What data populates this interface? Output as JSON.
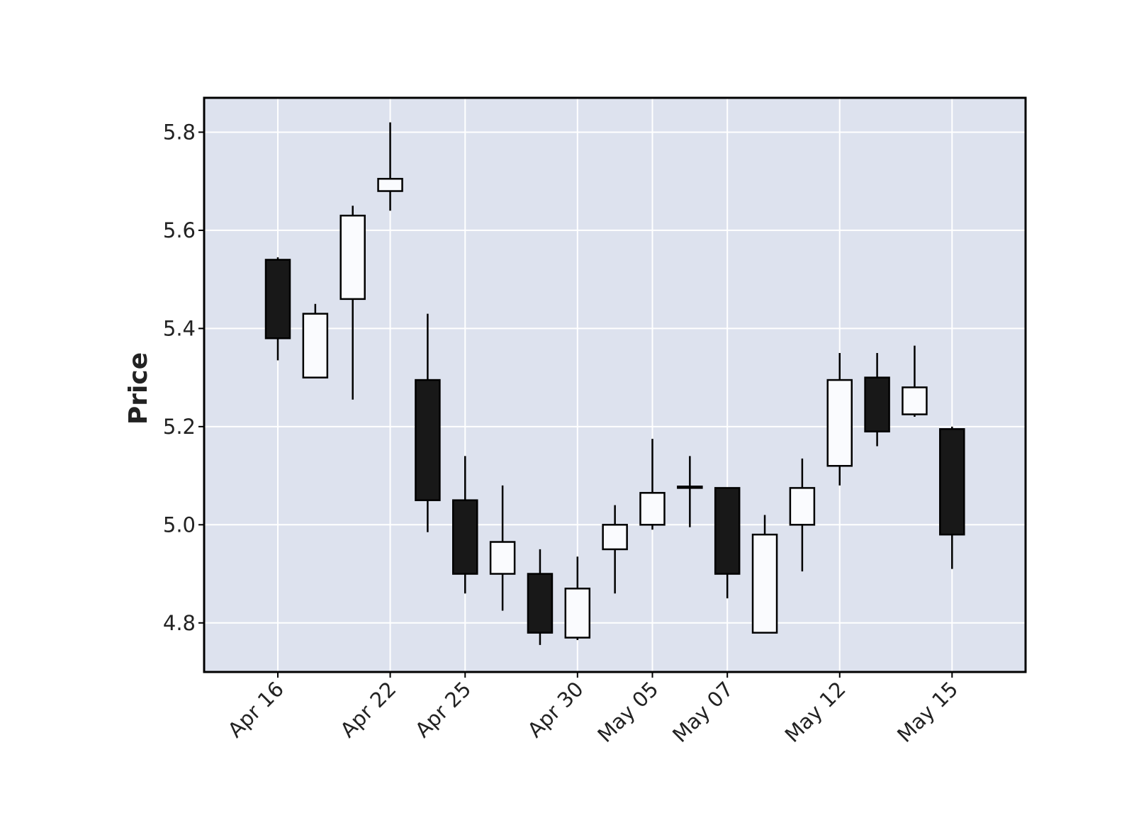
{
  "chart_data": {
    "type": "candlestick",
    "title": "",
    "xlabel": "",
    "ylabel": "Price",
    "ylim": [
      4.7,
      5.87
    ],
    "yticks": [
      "4.8",
      "5.0",
      "5.2",
      "5.4",
      "5.6",
      "5.8"
    ],
    "grid": true,
    "colors": {
      "background": "#dde2ee",
      "grid": "#ffffff",
      "up": "#fafbfe",
      "down": "#181818",
      "edge": "#000000"
    },
    "x_tick_labels": [
      "Apr 16",
      "Apr 22",
      "Apr 25",
      "Apr 30",
      "May 05",
      "May 07",
      "May 12",
      "May 15"
    ],
    "candles": [
      {
        "tick": "Apr 16",
        "open": 5.54,
        "high": 5.545,
        "low": 5.335,
        "close": 5.38
      },
      {
        "tick": "",
        "open": 5.3,
        "high": 5.45,
        "low": 5.3,
        "close": 5.43
      },
      {
        "tick": "",
        "open": 5.46,
        "high": 5.65,
        "low": 5.255,
        "close": 5.63
      },
      {
        "tick": "Apr 22",
        "open": 5.68,
        "high": 5.82,
        "low": 5.64,
        "close": 5.705
      },
      {
        "tick": "",
        "open": 5.295,
        "high": 5.43,
        "low": 4.985,
        "close": 5.05
      },
      {
        "tick": "Apr 25",
        "open": 5.05,
        "high": 5.14,
        "low": 4.86,
        "close": 4.9
      },
      {
        "tick": "",
        "open": 4.9,
        "high": 5.08,
        "low": 4.825,
        "close": 4.965
      },
      {
        "tick": "",
        "open": 4.9,
        "high": 4.95,
        "low": 4.755,
        "close": 4.78
      },
      {
        "tick": "Apr 30",
        "open": 4.77,
        "high": 4.935,
        "low": 4.765,
        "close": 4.87
      },
      {
        "tick": "",
        "open": 4.95,
        "high": 5.04,
        "low": 4.86,
        "close": 5.0
      },
      {
        "tick": "May 05",
        "open": 5.0,
        "high": 5.175,
        "low": 4.99,
        "close": 5.065
      },
      {
        "tick": "",
        "open": 5.075,
        "high": 5.14,
        "low": 4.995,
        "close": 5.078
      },
      {
        "tick": "May 07",
        "open": 5.075,
        "high": 5.075,
        "low": 4.85,
        "close": 4.9
      },
      {
        "tick": "",
        "open": 4.78,
        "high": 5.02,
        "low": 4.78,
        "close": 4.98
      },
      {
        "tick": "",
        "open": 5.0,
        "high": 5.135,
        "low": 4.905,
        "close": 5.075
      },
      {
        "tick": "May 12",
        "open": 5.12,
        "high": 5.35,
        "low": 5.08,
        "close": 5.295
      },
      {
        "tick": "",
        "open": 5.3,
        "high": 5.35,
        "low": 5.16,
        "close": 5.19
      },
      {
        "tick": "",
        "open": 5.225,
        "high": 5.365,
        "low": 5.22,
        "close": 5.28
      },
      {
        "tick": "May 15",
        "open": 5.195,
        "high": 5.2,
        "low": 4.91,
        "close": 4.98
      }
    ]
  }
}
